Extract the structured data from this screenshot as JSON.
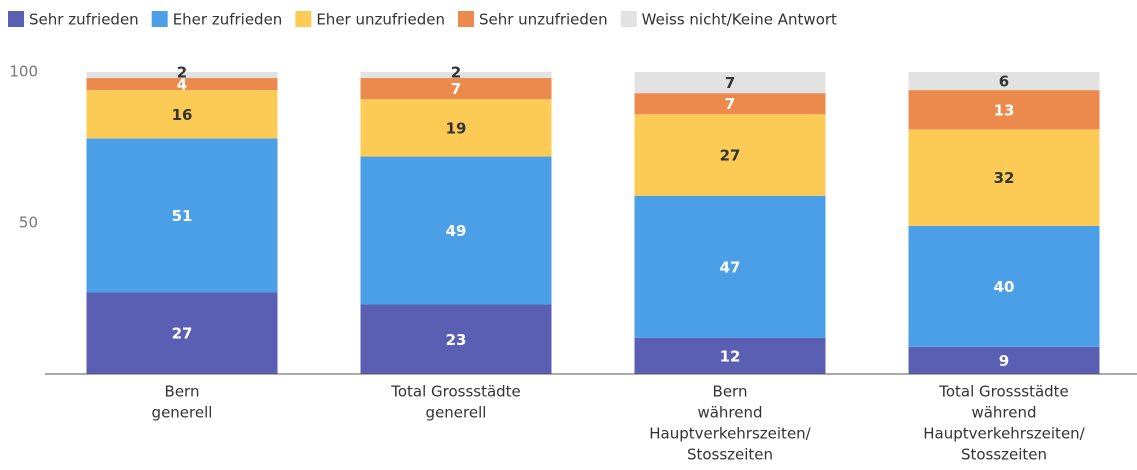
{
  "chart_data": {
    "type": "stacked_bar",
    "categories": [
      [
        "Bern",
        "generell"
      ],
      [
        "Total Grossstädte",
        "generell"
      ],
      [
        "Bern",
        "während",
        "Hauptverkehrszeiten/",
        "Stosszeiten"
      ],
      [
        "Total Grossstädte",
        "während",
        "Hauptverkehrszeiten/",
        "Stosszeiten"
      ]
    ],
    "series": [
      {
        "name": "Sehr zufrieden",
        "color": "#5b5fb3",
        "label_color": "#ffffff",
        "values": [
          27,
          23,
          12,
          9
        ]
      },
      {
        "name": "Eher zufrieden",
        "color": "#4a9fe6",
        "label_color": "#ffffff",
        "values": [
          51,
          49,
          47,
          40
        ]
      },
      {
        "name": "Eher unzufrieden",
        "color": "#fccb55",
        "label_color": "#333333",
        "values": [
          16,
          19,
          27,
          32
        ]
      },
      {
        "name": "Sehr unzufrieden",
        "color": "#ec8a4d",
        "label_color": "#ffffff",
        "values": [
          4,
          7,
          7,
          13
        ]
      },
      {
        "name": "Weiss nicht/Keine Antwort",
        "color": "#e2e2e2",
        "label_color": "#333333",
        "values": [
          2,
          2,
          7,
          6
        ]
      }
    ],
    "ylim": [
      0,
      100
    ],
    "yticks": [
      50,
      100
    ],
    "grid": false
  }
}
